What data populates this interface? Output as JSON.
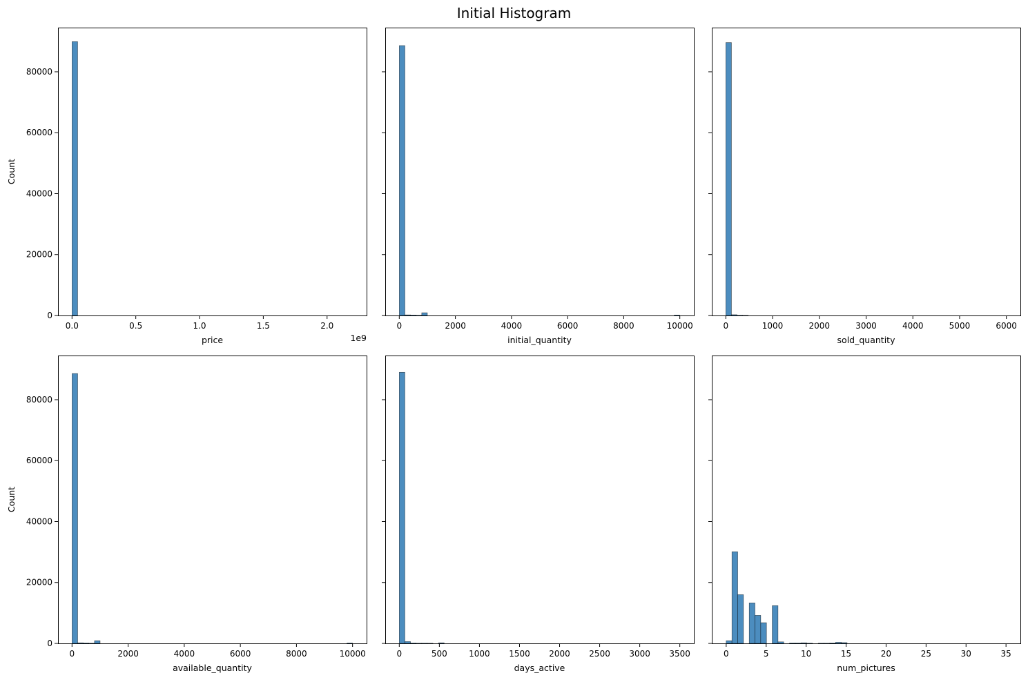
{
  "figure": {
    "title": "Initial Histogram",
    "bar_color": "#4c8dbf"
  },
  "chart_data": [
    {
      "type": "bar",
      "id": "price",
      "xlabel": "price",
      "ylabel": "Count",
      "x_offset_label": "1e9",
      "xlim": [
        -0.11,
        2.31
      ],
      "ylim": [
        0,
        94500
      ],
      "xticks": [
        0.0,
        0.5,
        1.0,
        1.5,
        2.0
      ],
      "xtick_labels": [
        "0.0",
        "0.5",
        "1.0",
        "1.5",
        "2.0"
      ],
      "yticks": [
        0,
        20000,
        40000,
        60000,
        80000
      ],
      "ytick_labels": [
        "0",
        "20000",
        "40000",
        "60000",
        "80000"
      ],
      "bins": [
        {
          "x0": 0.0,
          "x1": 0.044,
          "count": 89900
        }
      ]
    },
    {
      "type": "bar",
      "id": "initial_quantity",
      "xlabel": "initial_quantity",
      "ylabel": "",
      "x_offset_label": "",
      "xlim": [
        -500,
        10500
      ],
      "ylim": [
        0,
        94500
      ],
      "xticks": [
        0,
        2000,
        4000,
        6000,
        8000,
        10000
      ],
      "xtick_labels": [
        "0",
        "2000",
        "4000",
        "6000",
        "8000",
        "10000"
      ],
      "yticks": [
        0,
        20000,
        40000,
        60000,
        80000
      ],
      "ytick_labels": [],
      "bins": [
        {
          "x0": 1,
          "x1": 201,
          "count": 88600
        },
        {
          "x0": 201,
          "x1": 401,
          "count": 200
        },
        {
          "x0": 401,
          "x1": 601,
          "count": 150
        },
        {
          "x0": 601,
          "x1": 801,
          "count": 100
        },
        {
          "x0": 801,
          "x1": 1001,
          "count": 900
        },
        {
          "x0": 9801,
          "x1": 10001,
          "count": 150
        }
      ]
    },
    {
      "type": "bar",
      "id": "sold_quantity",
      "xlabel": "sold_quantity",
      "ylabel": "",
      "x_offset_label": "",
      "xlim": [
        -300,
        6300
      ],
      "ylim": [
        0,
        94500
      ],
      "xticks": [
        0,
        1000,
        2000,
        3000,
        4000,
        5000,
        6000
      ],
      "xtick_labels": [
        "0",
        "1000",
        "2000",
        "3000",
        "4000",
        "5000",
        "6000"
      ],
      "yticks": [
        0,
        20000,
        40000,
        60000,
        80000
      ],
      "ytick_labels": [],
      "bins": [
        {
          "x0": 0,
          "x1": 120,
          "count": 89600
        },
        {
          "x0": 120,
          "x1": 240,
          "count": 250
        },
        {
          "x0": 240,
          "x1": 360,
          "count": 100
        },
        {
          "x0": 360,
          "x1": 480,
          "count": 60
        }
      ]
    },
    {
      "type": "bar",
      "id": "available_quantity",
      "xlabel": "available_quantity",
      "ylabel": "Count",
      "x_offset_label": "",
      "xlim": [
        -500,
        10500
      ],
      "ylim": [
        0,
        94500
      ],
      "xticks": [
        0,
        2000,
        4000,
        6000,
        8000,
        10000
      ],
      "xtick_labels": [
        "0",
        "2000",
        "4000",
        "6000",
        "8000",
        "10000"
      ],
      "yticks": [
        0,
        20000,
        40000,
        60000,
        80000
      ],
      "ytick_labels": [
        "0",
        "20000",
        "40000",
        "60000",
        "80000"
      ],
      "bins": [
        {
          "x0": 1,
          "x1": 201,
          "count": 88600
        },
        {
          "x0": 201,
          "x1": 401,
          "count": 200
        },
        {
          "x0": 401,
          "x1": 601,
          "count": 150
        },
        {
          "x0": 601,
          "x1": 801,
          "count": 100
        },
        {
          "x0": 801,
          "x1": 1001,
          "count": 900
        },
        {
          "x0": 9801,
          "x1": 10001,
          "count": 150
        }
      ]
    },
    {
      "type": "bar",
      "id": "days_active",
      "xlabel": "days_active",
      "ylabel": "",
      "x_offset_label": "",
      "xlim": [
        -175,
        3675
      ],
      "ylim": [
        0,
        94500
      ],
      "xticks": [
        0,
        500,
        1000,
        1500,
        2000,
        2500,
        3000,
        3500
      ],
      "xtick_labels": [
        "0",
        "500",
        "1000",
        "1500",
        "2000",
        "2500",
        "3000",
        "3500"
      ],
      "yticks": [
        0,
        20000,
        40000,
        60000,
        80000
      ],
      "ytick_labels": [],
      "bins": [
        {
          "x0": 0,
          "x1": 70,
          "count": 89000
        },
        {
          "x0": 70,
          "x1": 140,
          "count": 600
        },
        {
          "x0": 140,
          "x1": 210,
          "count": 150
        },
        {
          "x0": 210,
          "x1": 280,
          "count": 100
        },
        {
          "x0": 280,
          "x1": 350,
          "count": 100
        },
        {
          "x0": 350,
          "x1": 420,
          "count": 80
        },
        {
          "x0": 490,
          "x1": 560,
          "count": 200
        }
      ]
    },
    {
      "type": "bar",
      "id": "num_pictures",
      "xlabel": "num_pictures",
      "ylabel": "",
      "x_offset_label": "",
      "xlim": [
        -1.8,
        36.8
      ],
      "ylim": [
        0,
        94500
      ],
      "xticks": [
        0,
        5,
        10,
        15,
        20,
        25,
        30,
        35
      ],
      "xtick_labels": [
        "0",
        "5",
        "10",
        "15",
        "20",
        "25",
        "30",
        "35"
      ],
      "yticks": [
        0,
        20000,
        40000,
        60000,
        80000
      ],
      "ytick_labels": [],
      "bins": [
        {
          "x0": 0.0,
          "x1": 0.72,
          "count": 900
        },
        {
          "x0": 0.72,
          "x1": 1.44,
          "count": 30100
        },
        {
          "x0": 1.44,
          "x1": 2.16,
          "count": 16000
        },
        {
          "x0": 2.16,
          "x1": 2.88,
          "count": 0
        },
        {
          "x0": 2.88,
          "x1": 3.6,
          "count": 13300
        },
        {
          "x0": 3.6,
          "x1": 4.32,
          "count": 9200
        },
        {
          "x0": 4.32,
          "x1": 5.04,
          "count": 6800
        },
        {
          "x0": 5.04,
          "x1": 5.76,
          "count": 0
        },
        {
          "x0": 5.76,
          "x1": 6.48,
          "count": 12400
        },
        {
          "x0": 6.48,
          "x1": 7.2,
          "count": 500
        },
        {
          "x0": 7.92,
          "x1": 8.64,
          "count": 150
        },
        {
          "x0": 8.64,
          "x1": 9.36,
          "count": 150
        },
        {
          "x0": 9.36,
          "x1": 10.08,
          "count": 200
        },
        {
          "x0": 10.08,
          "x1": 10.8,
          "count": 100
        },
        {
          "x0": 11.52,
          "x1": 12.24,
          "count": 100
        },
        {
          "x0": 12.24,
          "x1": 12.96,
          "count": 100
        },
        {
          "x0": 12.96,
          "x1": 13.68,
          "count": 150
        },
        {
          "x0": 13.68,
          "x1": 14.4,
          "count": 350
        },
        {
          "x0": 14.4,
          "x1": 15.12,
          "count": 250
        }
      ]
    }
  ]
}
